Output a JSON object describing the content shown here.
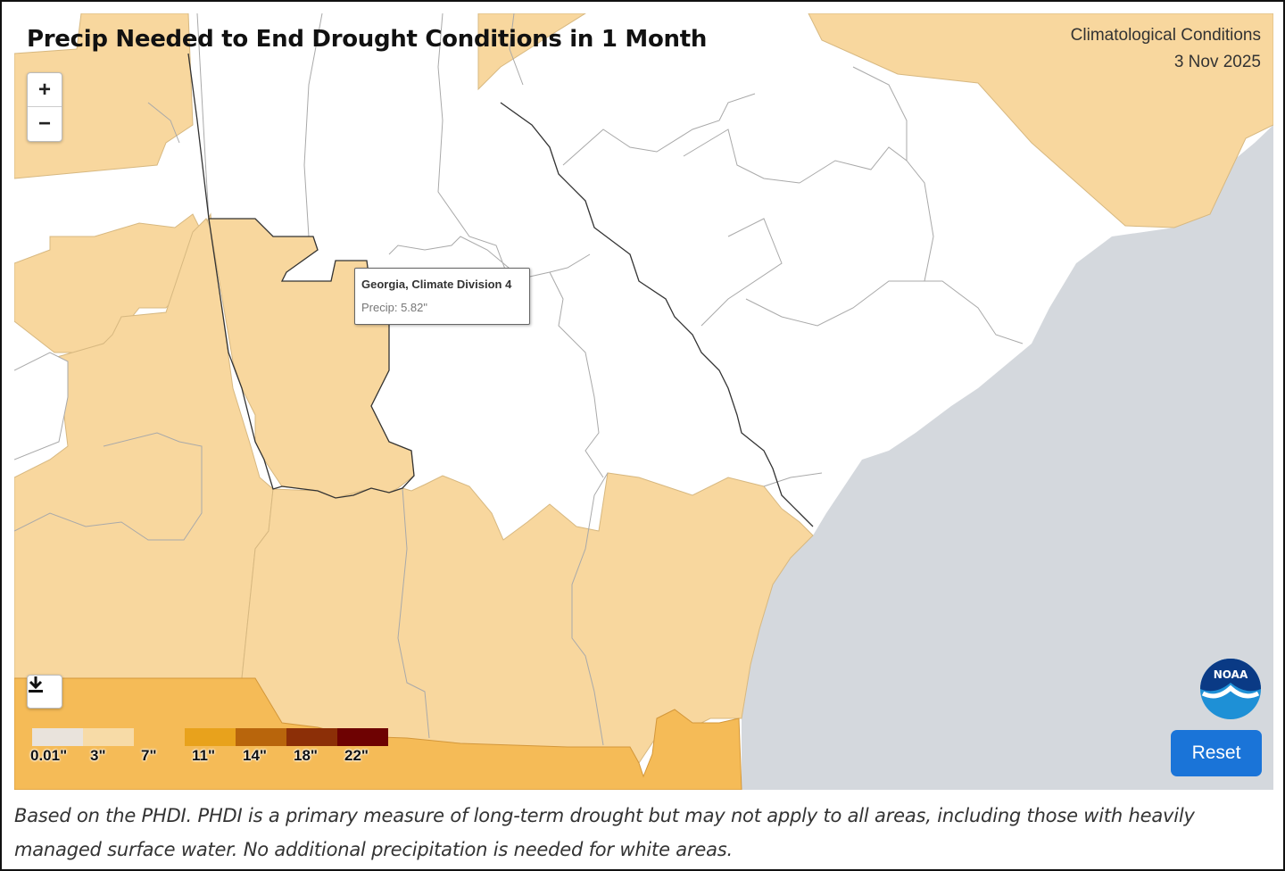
{
  "title": "Precip Needed to End Drought Conditions in 1 Month",
  "conditions": {
    "label": "Climatological Conditions",
    "date": "3 Nov 2025"
  },
  "zoom": {
    "in_label": "+",
    "out_label": "−"
  },
  "download_icon": "download-icon",
  "tooltip": {
    "region": "Georgia, Climate Division 4",
    "value": "Precip: 5.82\""
  },
  "legend": {
    "labels": [
      "0.01\"",
      "3\"",
      "7\"",
      "11\"",
      "14\"",
      "18\"",
      "22\""
    ],
    "colors": [
      "#e9e3dc",
      "#f7dba7",
      "#ffffff",
      "#e8a21c",
      "#b8650c",
      "#8c2f07",
      "#6e0202"
    ]
  },
  "reset_label": "Reset",
  "logo": "noaa-logo",
  "caption": "Based on the PHDI. PHDI is a primary measure of long-term drought but may not apply to all areas, including those with heavily managed surface water. No additional precipitation is needed for white areas.",
  "colors": {
    "light_tan": "#f8d79e",
    "orange": "#f5bb57",
    "ocean": "#d4d8dd",
    "button": "#1a74d8"
  }
}
